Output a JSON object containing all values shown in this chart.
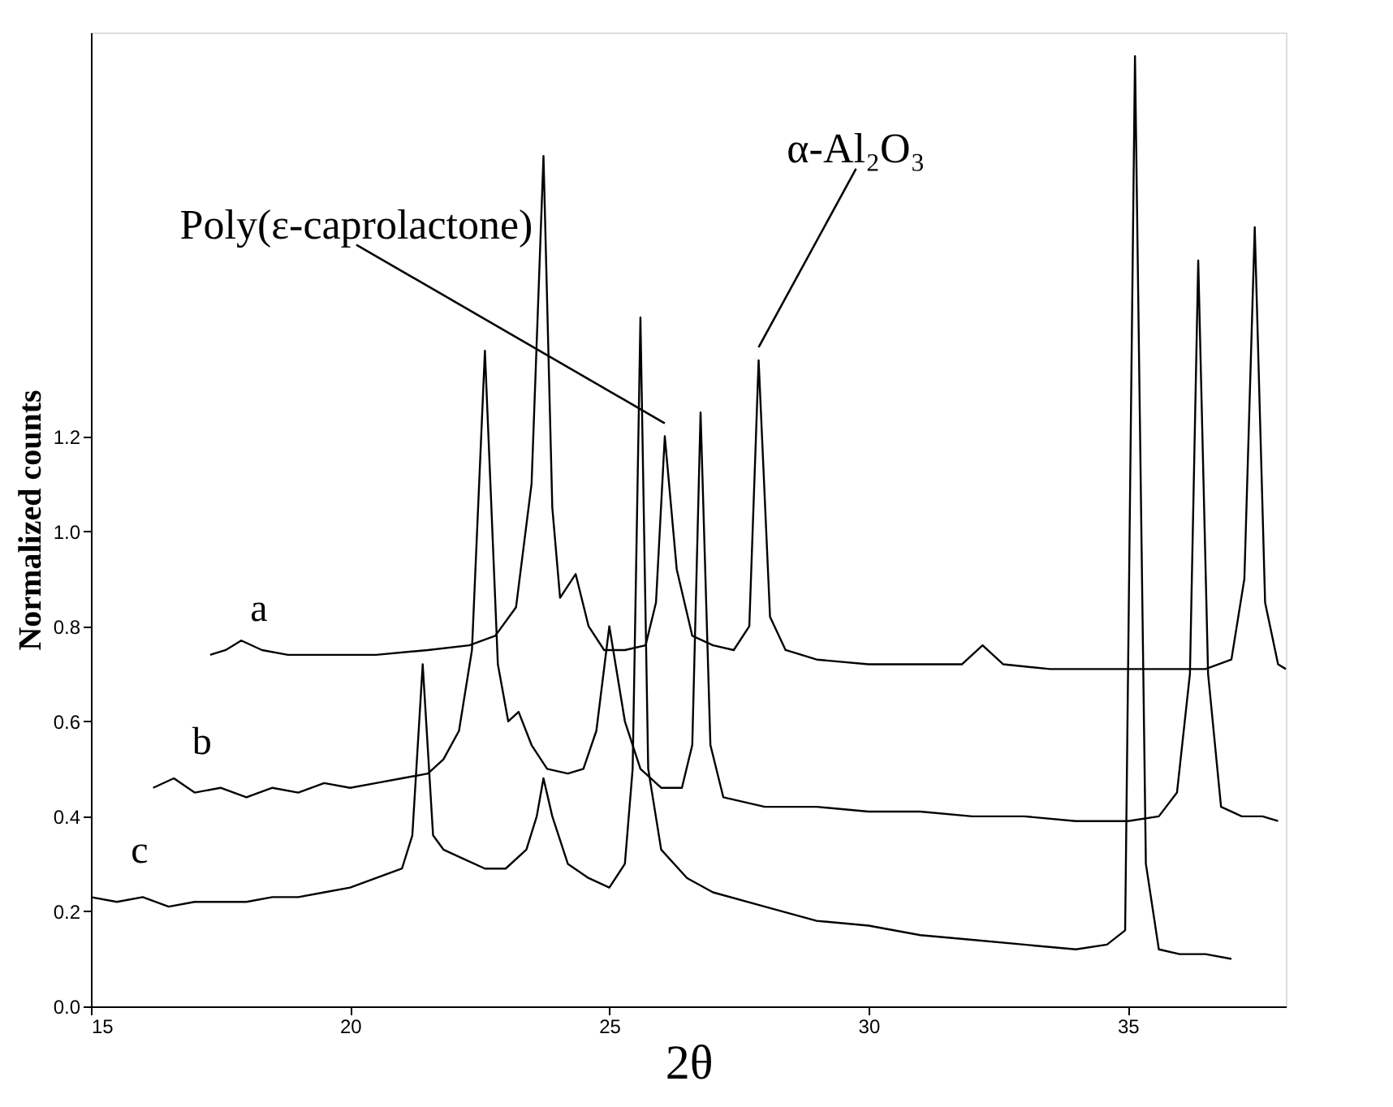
{
  "chart_data": {
    "type": "line",
    "xlabel": "2θ",
    "ylabel": "Normalized counts",
    "xlim": [
      15,
      38.05
    ],
    "ylim": [
      0,
      2.05
    ],
    "xticks": [
      15,
      20,
      25,
      30,
      35
    ],
    "yticks": [
      {
        "value": 0,
        "label": "0.0"
      },
      {
        "value": 0.2,
        "label": "0.2"
      },
      {
        "value": 0.4,
        "label": "0.4"
      },
      {
        "value": 0.6,
        "label": "0.6"
      },
      {
        "value": 0.8,
        "label": "0.8"
      },
      {
        "value": 1.0,
        "label": "1.0"
      },
      {
        "value": 1.2,
        "label": "1.2"
      }
    ],
    "grid": false,
    "marker": "none",
    "line_style": "solid",
    "series": [
      {
        "name": "a",
        "color": "#000000",
        "x": [
          17.3,
          17.6,
          17.9,
          18.3,
          18.8,
          19.5,
          20.5,
          21.5,
          22.3,
          22.8,
          23.2,
          23.5,
          23.73,
          23.9,
          24.05,
          24.35,
          24.6,
          24.9,
          25.3,
          25.7,
          25.9,
          26.07,
          26.3,
          26.6,
          27.0,
          27.4,
          27.7,
          27.88,
          28.1,
          28.4,
          29.0,
          30.0,
          31.0,
          31.8,
          32.2,
          32.6,
          33.5,
          34.5,
          35.5,
          36.5,
          37.0,
          37.25,
          37.45,
          37.65,
          37.9,
          38.05
        ],
        "values": [
          0.74,
          0.75,
          0.77,
          0.75,
          0.74,
          0.74,
          0.74,
          0.75,
          0.76,
          0.78,
          0.84,
          1.1,
          1.79,
          1.05,
          0.86,
          0.91,
          0.8,
          0.75,
          0.75,
          0.76,
          0.85,
          1.2,
          0.92,
          0.78,
          0.76,
          0.75,
          0.8,
          1.36,
          0.82,
          0.75,
          0.73,
          0.72,
          0.72,
          0.72,
          0.76,
          0.72,
          0.71,
          0.71,
          0.71,
          0.71,
          0.73,
          0.9,
          1.64,
          0.85,
          0.72,
          0.71
        ]
      },
      {
        "name": "b",
        "color": "#000000",
        "x": [
          16.2,
          16.6,
          17.0,
          17.5,
          18.0,
          18.5,
          19.0,
          19.5,
          20.0,
          20.5,
          21.0,
          21.5,
          21.8,
          22.1,
          22.35,
          22.6,
          22.85,
          23.05,
          23.25,
          23.5,
          23.8,
          24.2,
          24.5,
          24.75,
          25.0,
          25.3,
          25.6,
          26.0,
          26.4,
          26.6,
          26.76,
          26.95,
          27.2,
          28.0,
          29.0,
          30.0,
          31.0,
          32.0,
          33.0,
          34.0,
          35.0,
          35.6,
          35.95,
          36.2,
          36.36,
          36.55,
          36.8,
          37.2,
          37.6,
          37.9
        ],
        "values": [
          0.46,
          0.48,
          0.45,
          0.46,
          0.44,
          0.46,
          0.45,
          0.47,
          0.46,
          0.47,
          0.48,
          0.49,
          0.52,
          0.58,
          0.75,
          1.38,
          0.72,
          0.6,
          0.62,
          0.55,
          0.5,
          0.49,
          0.5,
          0.58,
          0.8,
          0.6,
          0.5,
          0.46,
          0.46,
          0.55,
          1.25,
          0.55,
          0.44,
          0.42,
          0.42,
          0.41,
          0.41,
          0.4,
          0.4,
          0.39,
          0.39,
          0.4,
          0.45,
          0.7,
          1.57,
          0.7,
          0.42,
          0.4,
          0.4,
          0.39
        ]
      },
      {
        "name": "c",
        "color": "#000000",
        "x": [
          15.0,
          15.5,
          16.0,
          16.5,
          17.0,
          17.5,
          18.0,
          18.5,
          19.0,
          19.5,
          20.0,
          20.5,
          21.0,
          21.2,
          21.4,
          21.6,
          21.8,
          22.2,
          22.6,
          23.0,
          23.4,
          23.6,
          23.73,
          23.9,
          24.2,
          24.6,
          25.0,
          25.3,
          25.45,
          25.6,
          25.75,
          26.0,
          26.5,
          27.0,
          28.0,
          29.0,
          30.0,
          31.0,
          32.0,
          33.0,
          34.0,
          34.6,
          34.95,
          35.14,
          35.35,
          35.6,
          36.0,
          36.5,
          37.0
        ],
        "values": [
          0.23,
          0.22,
          0.23,
          0.21,
          0.22,
          0.22,
          0.22,
          0.23,
          0.23,
          0.24,
          0.25,
          0.27,
          0.29,
          0.36,
          0.72,
          0.36,
          0.33,
          0.31,
          0.29,
          0.29,
          0.33,
          0.4,
          0.48,
          0.4,
          0.3,
          0.27,
          0.25,
          0.3,
          0.5,
          1.45,
          0.5,
          0.33,
          0.27,
          0.24,
          0.21,
          0.18,
          0.17,
          0.15,
          0.14,
          0.13,
          0.12,
          0.13,
          0.16,
          2.0,
          0.3,
          0.12,
          0.11,
          0.11,
          0.1
        ]
      }
    ],
    "annotations": [
      {
        "text": "Poly(ε-caprolactone)",
        "x": 26.07,
        "y": 1.2
      },
      {
        "text": "α-Al₂O₃",
        "x": 27.88,
        "y": 1.36
      }
    ]
  }
}
